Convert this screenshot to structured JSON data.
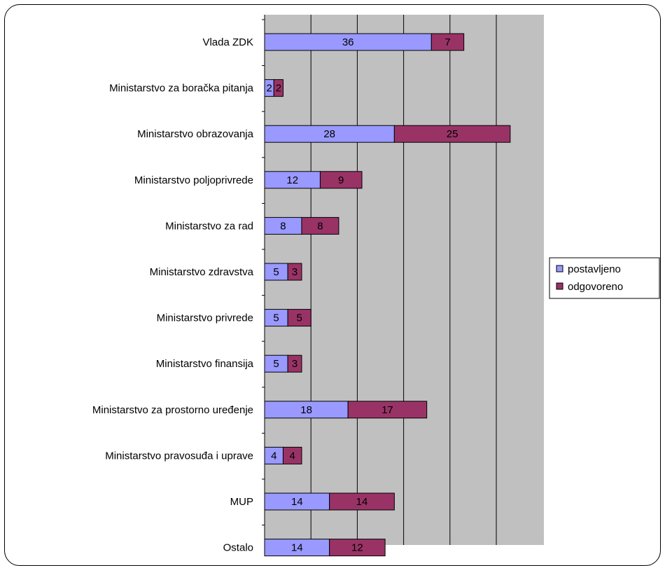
{
  "chart_data": {
    "type": "bar",
    "orientation": "horizontal",
    "stacked": true,
    "categories": [
      "Vlada ZDK",
      "Ministarstvo za boračka pitanja",
      "Ministarstvo obrazovanja",
      "Ministarstvo poljoprivrede",
      "Ministarstvo za rad",
      "Ministarstvo zdravstva",
      "Ministarstvo privrede",
      "Ministarstvo finansija",
      "Ministarstvo za prostorno uređenje",
      "Ministarstvo pravosuđa i uprave",
      "MUP",
      "Ostalo"
    ],
    "series": [
      {
        "name": "postavljeno",
        "color": "#9999ff",
        "values": [
          36,
          2,
          28,
          12,
          8,
          5,
          5,
          5,
          18,
          4,
          14,
          14
        ]
      },
      {
        "name": "odgovoreno",
        "color": "#993366",
        "values": [
          7,
          2,
          25,
          9,
          8,
          3,
          5,
          3,
          17,
          4,
          14,
          12
        ]
      }
    ],
    "xlim": [
      0,
      60
    ],
    "x_gridline_step": 10,
    "plot_background": "#c0c0c0",
    "grid": true,
    "legend_position": "right",
    "title": "",
    "xlabel": "",
    "ylabel": ""
  }
}
